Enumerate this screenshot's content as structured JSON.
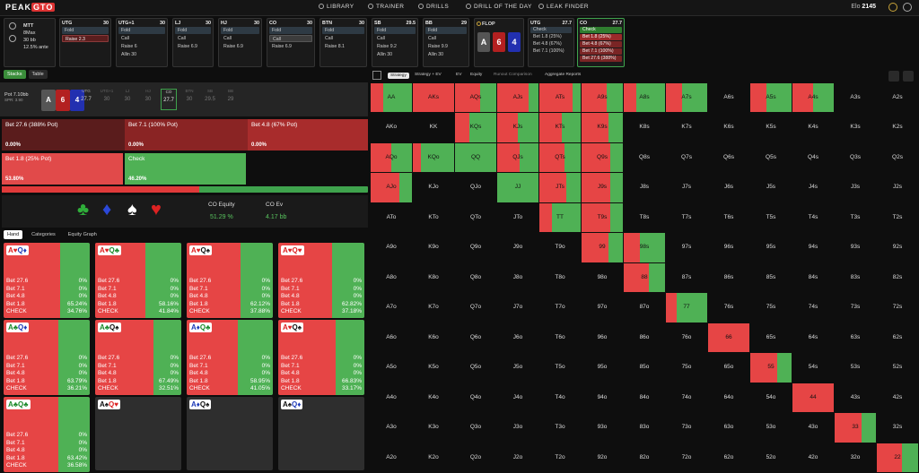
{
  "topbar": {
    "logo_a": "PEAK",
    "logo_b": "GTO",
    "nav": [
      "LIBRARY",
      "TRAINER",
      "DRILLS",
      "DRILL OF THE DAY",
      "LEAK FINDER"
    ],
    "elo_label": "Elo",
    "elo_value": "2145"
  },
  "game": {
    "type": "MTT",
    "players": "8Max",
    "stack": "30 bb",
    "ante": "12.5% ante"
  },
  "history": [
    {
      "pos": "UTG",
      "stack": "30",
      "rows": [
        {
          "t": "Fold",
          "s": "fold"
        },
        {
          "t": "Raise 2.3",
          "s": "sel red"
        }
      ]
    },
    {
      "pos": "UTG+1",
      "stack": "30",
      "rows": [
        {
          "t": "Fold",
          "s": "fold"
        },
        {
          "t": "Call",
          "s": ""
        },
        {
          "t": "Raise 6",
          "s": ""
        },
        {
          "t": "Allin 30",
          "s": ""
        }
      ]
    },
    {
      "pos": "LJ",
      "stack": "30",
      "rows": [
        {
          "t": "Fold",
          "s": "fold"
        },
        {
          "t": "Call",
          "s": ""
        },
        {
          "t": "Raise 6.9",
          "s": ""
        }
      ]
    },
    {
      "pos": "HJ",
      "stack": "30",
      "rows": [
        {
          "t": "Fold",
          "s": "fold"
        },
        {
          "t": "Call",
          "s": ""
        },
        {
          "t": "Raise 6.9",
          "s": ""
        }
      ]
    },
    {
      "pos": "CO",
      "stack": "30",
      "rows": [
        {
          "t": "Fold",
          "s": "fold"
        },
        {
          "t": "Call",
          "s": "sel"
        },
        {
          "t": "Raise 6.9",
          "s": ""
        }
      ]
    },
    {
      "pos": "BTN",
      "stack": "30",
      "rows": [
        {
          "t": "Fold",
          "s": "fold"
        },
        {
          "t": "Call",
          "s": ""
        },
        {
          "t": "Raise 8.1",
          "s": ""
        }
      ]
    },
    {
      "pos": "SB",
      "stack": "29.5",
      "rows": [
        {
          "t": "Fold",
          "s": "fold"
        },
        {
          "t": "Call",
          "s": ""
        },
        {
          "t": "Raise 9.2",
          "s": ""
        },
        {
          "t": "Allin 30",
          "s": ""
        }
      ]
    },
    {
      "pos": "BB",
      "stack": "29",
      "rows": [
        {
          "t": "Fold",
          "s": "fold"
        },
        {
          "t": "Call",
          "s": ""
        },
        {
          "t": "Raise 9.9",
          "s": ""
        },
        {
          "t": "Allin 30",
          "s": ""
        }
      ]
    }
  ],
  "flop": {
    "label": "FLOP",
    "cards": [
      "A",
      "6",
      "4"
    ]
  },
  "utg_post": {
    "pos": "UTG",
    "stack": "27.7",
    "rows": [
      {
        "t": "Check",
        "s": "fold"
      },
      {
        "t": "Bet 1.8 (25%)",
        "s": ""
      },
      {
        "t": "Bet 4.8 (67%)",
        "s": ""
      },
      {
        "t": "Bet 7.1 (100%)",
        "s": ""
      }
    ]
  },
  "co_post": {
    "pos": "CO",
    "stack": "27.7",
    "rows": [
      {
        "t": "Check",
        "s": "chk"
      },
      {
        "t": "Bet 1.8 (25%)",
        "s": "r1"
      },
      {
        "t": "Bet 4.8 (67%)",
        "s": "r2"
      },
      {
        "t": "Bet 7.1 (100%)",
        "s": "r2"
      },
      {
        "t": "Bet 27.6 (388%)",
        "s": "r2"
      }
    ]
  },
  "tabs": [
    "Stacks",
    "Table"
  ],
  "pot": {
    "label": "Pot",
    "value": "7.10bb",
    "spr": "SPR: 3.90"
  },
  "board": [
    "A",
    "6",
    "4"
  ],
  "seats": [
    {
      "n": "UTG",
      "v": "27.7"
    },
    {
      "n": "UTG+1",
      "v": "30"
    },
    {
      "n": "LJ",
      "v": "30"
    },
    {
      "n": "HJ",
      "v": "30"
    },
    {
      "n": "CO",
      "v": "27.7"
    },
    {
      "n": "BTN",
      "v": "30"
    },
    {
      "n": "SB",
      "v": "29.5"
    },
    {
      "n": "BB",
      "v": "29"
    }
  ],
  "actions": [
    {
      "label": "Bet 27.6 (388% Pot)",
      "pct": "0.00%",
      "color": "#5a1c1c"
    },
    {
      "label": "Bet 7.1 (100% Pot)",
      "pct": "0.00%",
      "color": "#8a2424"
    },
    {
      "label": "Bet 4.8 (67% Pot)",
      "pct": "0.00%",
      "color": "#a82c2c"
    },
    {
      "label": "Bet 1.8 (25% Pot)",
      "pct": "53.80%",
      "color": "#e14a4a"
    },
    {
      "label": "Check",
      "pct": "46.20%",
      "color": "#4fb155"
    }
  ],
  "equity": {
    "bet_share": 0.538,
    "label_eq": "CO Equity",
    "val_eq": "51.29 %",
    "label_ev": "CO Ev",
    "val_ev": "4.17 bb",
    "suits": [
      "♣",
      "♦",
      "♠",
      "♥"
    ]
  },
  "hand_tabs": [
    "Hand",
    "Categories",
    "Equity Graph"
  ],
  "combos": [
    {
      "c1": "A",
      "s1": "♥",
      "c2": "Q",
      "s2": "♦",
      "k": [
        [
          "r",
          "r"
        ],
        [
          "b",
          "b"
        ]
      ],
      "bet": "0.6524",
      "vals": [
        "0%",
        "0%",
        "0%",
        "65.24%",
        "34.76%"
      ]
    },
    {
      "c1": "A",
      "s1": "♥",
      "c2": "Q",
      "s2": "♣",
      "k": [
        [
          "r",
          "r"
        ],
        [
          "g",
          "g"
        ]
      ],
      "bet": "0.5816",
      "vals": [
        "0%",
        "0%",
        "0%",
        "58.16%",
        "41.84%"
      ]
    },
    {
      "c1": "A",
      "s1": "♥",
      "c2": "Q",
      "s2": "♠",
      "k": [
        [
          "r",
          "r"
        ],
        [
          "k",
          "k"
        ]
      ],
      "bet": "0.6212",
      "vals": [
        "0%",
        "0%",
        "0%",
        "62.12%",
        "37.88%"
      ]
    },
    {
      "c1": "A",
      "s1": "♥",
      "c2": "Q",
      "s2": "♥",
      "k": [
        [
          "r",
          "r"
        ],
        [
          "r",
          "r"
        ]
      ],
      "bet": "0.6282",
      "vals": [
        "0%",
        "0%",
        "0%",
        "62.82%",
        "37.18%"
      ]
    },
    {
      "c1": "A",
      "s1": "♣",
      "c2": "Q",
      "s2": "♦",
      "k": [
        [
          "g",
          "g"
        ],
        [
          "b",
          "b"
        ]
      ],
      "bet": "0.6379",
      "vals": [
        "0%",
        "0%",
        "0%",
        "63.79%",
        "36.21%"
      ]
    },
    {
      "c1": "A",
      "s1": "♣",
      "c2": "Q",
      "s2": "♠",
      "k": [
        [
          "g",
          "g"
        ],
        [
          "k",
          "k"
        ]
      ],
      "bet": "0.6749",
      "vals": [
        "0%",
        "0%",
        "0%",
        "67.49%",
        "32.51%"
      ]
    },
    {
      "c1": "A",
      "s1": "♦",
      "c2": "Q",
      "s2": "♣",
      "k": [
        [
          "b",
          "b"
        ],
        [
          "g",
          "g"
        ]
      ],
      "bet": "0.5895",
      "vals": [
        "0%",
        "0%",
        "0%",
        "58.95%",
        "41.05%"
      ]
    },
    {
      "c1": "A",
      "s1": "♥",
      "c2": "Q",
      "s2": "♠",
      "k": [
        [
          "r",
          "r"
        ],
        [
          "k",
          "k"
        ]
      ],
      "bet": "0.6683",
      "vals": [
        "0%",
        "0%",
        "0%",
        "66.83%",
        "33.17%"
      ]
    },
    {
      "c1": "A",
      "s1": "♣",
      "c2": "Q",
      "s2": "♣",
      "k": [
        [
          "g",
          "g"
        ],
        [
          "g",
          "g"
        ]
      ],
      "bet": "0.6342",
      "vals": [
        "0%",
        "0%",
        "0%",
        "63.42%",
        "36.58%"
      ]
    },
    {
      "c1": "A",
      "s1": "♠",
      "c2": "Q",
      "s2": "♥",
      "k": [
        [
          "k",
          "k"
        ],
        [
          "r",
          "r"
        ]
      ],
      "empty": true
    },
    {
      "c1": "A",
      "s1": "♦",
      "c2": "Q",
      "s2": "♠",
      "k": [
        [
          "b",
          "b"
        ],
        [
          "k",
          "k"
        ]
      ],
      "empty": true
    },
    {
      "c1": "A",
      "s1": "♠",
      "c2": "Q",
      "s2": "♦",
      "k": [
        [
          "k",
          "k"
        ],
        [
          "b",
          "b"
        ]
      ],
      "empty": true
    }
  ],
  "combo_labels": [
    "Bet 27.6",
    "Bet 7.1",
    "Bet 4.8",
    "Bet 1.8",
    "CHECK"
  ],
  "right_tabs": [
    "Strategy",
    "Strategy + EV",
    "EV",
    "Equity",
    "Runout Comparison",
    "Aggregate Reports"
  ],
  "ranks": [
    "A",
    "K",
    "Q",
    "J",
    "T",
    "9",
    "8",
    "7",
    "6",
    "5",
    "4",
    "3",
    "2"
  ],
  "matrix_fill": {
    "AA": 0.3,
    "AKs": 1,
    "AQs": 0.6,
    "AJs": 0.75,
    "ATs": 0.8,
    "A9s": 0.6,
    "A8s": 0.3,
    "A7s": 0.4,
    "A5s": 0.4,
    "A4s": 0.5,
    "KQs": 0.35,
    "KJs": 0.5,
    "KTs": 0.55,
    "K9s": 0.65,
    "AQo": 0.5,
    "KQo": 0.2,
    "QQ": 0,
    "QJs": 0.55,
    "QTs": 0.6,
    "Q9s": 0.7,
    "AJo": 0.7,
    "JJ": 0,
    "JTs": 0.65,
    "J9s": 0.7,
    "TT": 0.3,
    "T9s": 0.7,
    "99": 0.65,
    "98s": 0.4,
    "88": 0.6,
    "77": 0.25,
    "66": 1,
    "55": 0.65,
    "44": 1,
    "33": 0.65,
    "22": 0.6
  },
  "colors": {
    "bet": "#e64545",
    "check": "#4fb155"
  }
}
